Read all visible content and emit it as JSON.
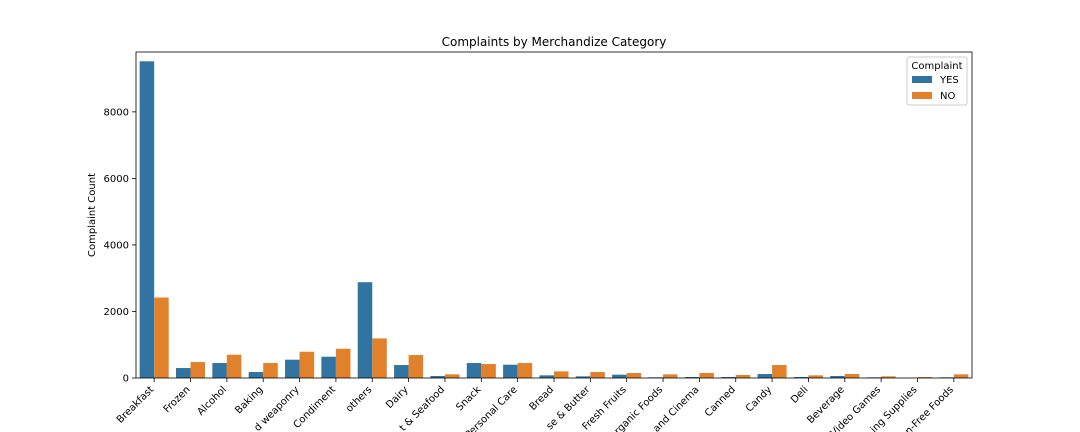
{
  "chart_data": {
    "type": "bar",
    "title": "Complaints by Merchandize Category",
    "xlabel": "",
    "ylabel": "Complaint Count",
    "ylim": [
      0,
      9800
    ],
    "yticks": [
      0,
      2000,
      4000,
      6000,
      8000
    ],
    "grid": false,
    "legend": {
      "title": "Complaint",
      "placement": "top-right"
    },
    "categories": [
      "Breakfast",
      "Frozen",
      "Alcohol",
      "Baking",
      "d weaponry",
      "Condiment",
      "others",
      "Dairy",
      "t & Seafood",
      "Snack",
      "Personal Care",
      "Bread",
      "se & Butter",
      "Fresh Fruits",
      "rganic Foods",
      "and Cinema",
      "Canned",
      "Candy",
      "Deli",
      "Beverage",
      "Video Games",
      "ing Supplies",
      "n-Free Foods"
    ],
    "series": [
      {
        "name": "YES",
        "color": "#3274a1",
        "values": [
          9520,
          300,
          450,
          180,
          550,
          640,
          2880,
          390,
          60,
          450,
          400,
          80,
          50,
          100,
          20,
          30,
          30,
          120,
          30,
          60,
          20,
          0,
          20
        ]
      },
      {
        "name": "NO",
        "color": "#e1812c",
        "values": [
          2420,
          480,
          700,
          450,
          790,
          880,
          1190,
          690,
          110,
          420,
          450,
          200,
          180,
          150,
          110,
          150,
          90,
          390,
          80,
          120,
          50,
          30,
          110
        ]
      }
    ]
  }
}
